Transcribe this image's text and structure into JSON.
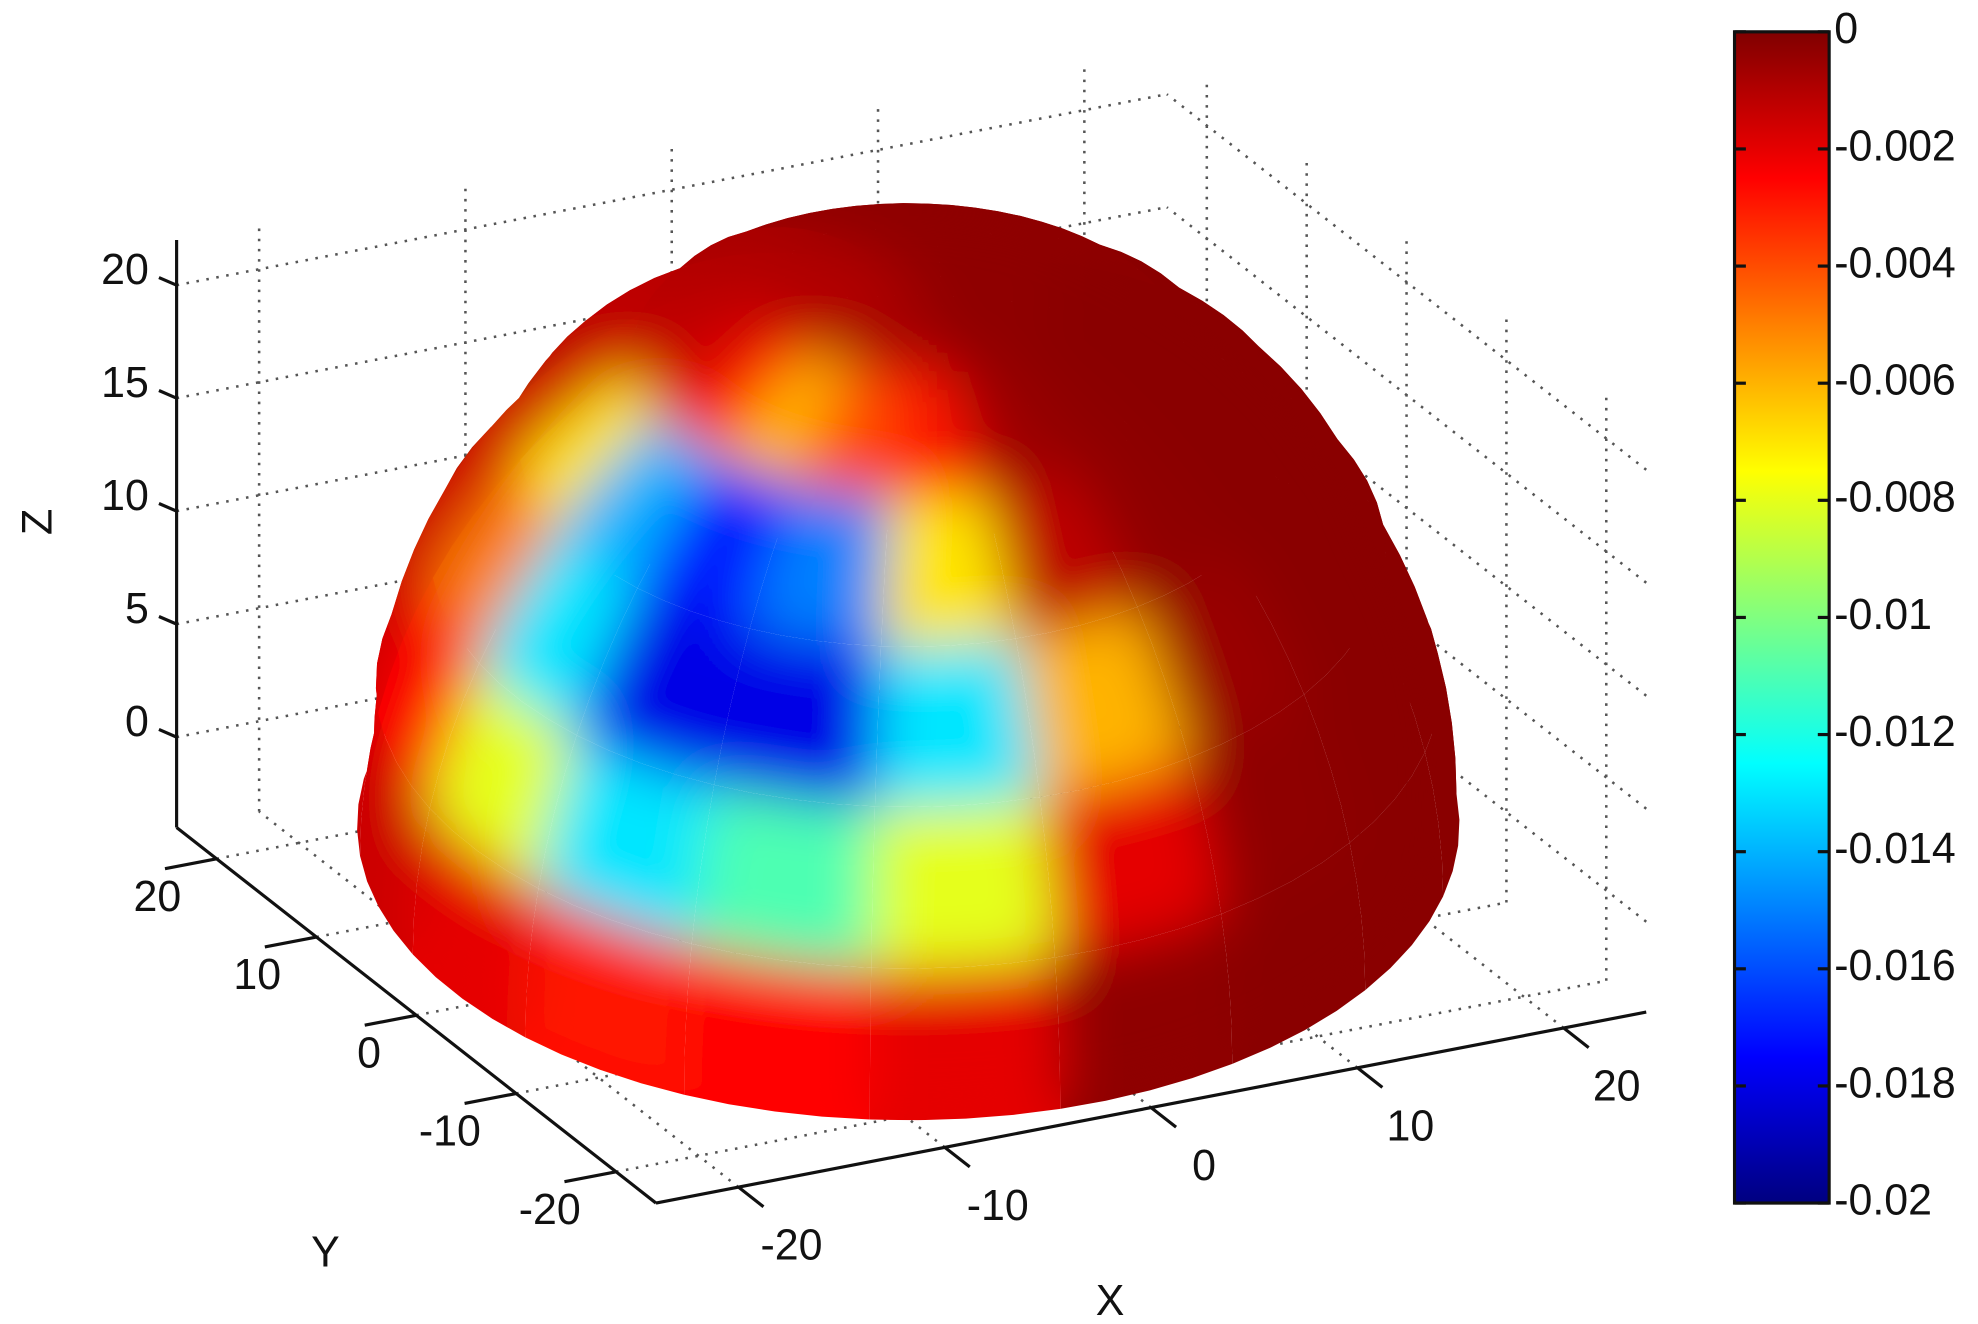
{
  "chart_data": {
    "type": "surface3d",
    "xlabel": "X",
    "ylabel": "Y",
    "zlabel": "Z",
    "xlim": [
      -24,
      24
    ],
    "ylim": [
      -24,
      24
    ],
    "zlim": [
      -4,
      22
    ],
    "xticks": [
      -20,
      -10,
      0,
      10,
      20
    ],
    "yticks": [
      -20,
      -10,
      0,
      10,
      20
    ],
    "zticks": [
      0,
      5,
      10,
      15,
      20
    ],
    "grid": true,
    "colormap": "jet",
    "clim": [
      -0.02,
      0
    ],
    "cticks": [
      0,
      -0.002,
      -0.004,
      -0.006,
      -0.008,
      -0.01,
      -0.012,
      -0.014,
      -0.016,
      -0.018,
      -0.02
    ],
    "surface": {
      "azimuth": [
        10,
        30,
        50,
        70,
        90,
        110,
        130,
        150,
        170,
        190,
        210,
        230,
        250,
        270,
        290,
        310,
        330,
        350
      ],
      "elevation": [
        7.5,
        22.5,
        37.5,
        52.5,
        67.5,
        82.5
      ],
      "values": [
        [
          -0.0002,
          -0.0002,
          -0.0002,
          -0.0002,
          -0.0002,
          -0.0005,
          -0.001,
          -0.0015,
          -0.0015,
          -0.002,
          -0.003,
          -0.0025,
          -0.002,
          -0.0003,
          -0.0002,
          -0.0002,
          -0.0002,
          -0.0002
        ],
        [
          -0.0002,
          -0.0002,
          -0.0002,
          -0.0002,
          -0.0002,
          -0.0008,
          -0.001,
          -0.0015,
          -0.0025,
          -0.008,
          -0.013,
          -0.011,
          -0.008,
          -0.002,
          -0.0003,
          -0.0002,
          -0.0002,
          -0.0002
        ],
        [
          -0.0002,
          -0.0002,
          -0.0002,
          -0.0002,
          -0.0002,
          -0.0008,
          -0.001,
          -0.0015,
          -0.005,
          -0.013,
          -0.018,
          -0.018,
          -0.013,
          -0.006,
          -0.0005,
          -0.0002,
          -0.0002,
          -0.0002
        ],
        [
          -0.0002,
          -0.0002,
          -0.0002,
          -0.0002,
          -0.0002,
          -0.0008,
          -0.0012,
          -0.0015,
          -0.007,
          -0.014,
          -0.017,
          -0.015,
          -0.007,
          -0.0012,
          -0.0003,
          -0.0002,
          -0.0002,
          -0.0002
        ],
        [
          -0.0003,
          -0.0003,
          -0.0003,
          -0.0003,
          -0.0003,
          -0.0008,
          -0.001,
          -0.0012,
          -0.0015,
          -0.003,
          -0.006,
          -0.004,
          -0.003,
          -0.0006,
          -0.0003,
          -0.0002,
          -0.0002,
          -0.0002
        ],
        [
          -0.0003,
          -0.0003,
          -0.0003,
          -0.0003,
          -0.0003,
          -0.0008,
          -0.001,
          -0.001,
          -0.001,
          -0.001,
          -0.0008,
          -0.0008,
          -0.0008,
          -0.0003,
          -0.0003,
          -0.0003,
          -0.0003,
          -0.0003
        ]
      ]
    }
  }
}
